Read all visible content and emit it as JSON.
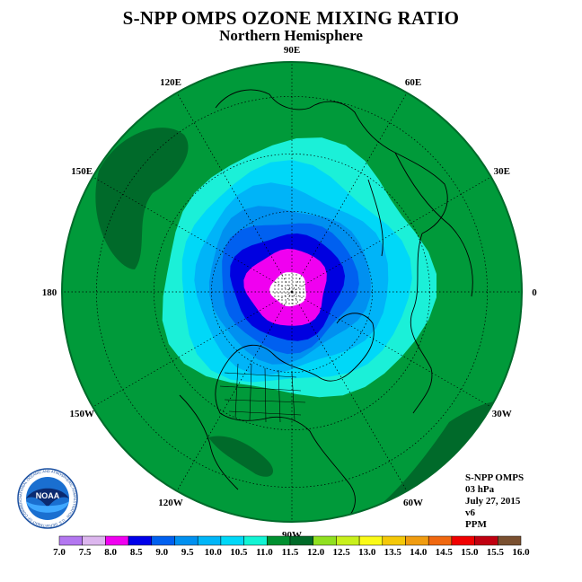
{
  "title": "S-NPP OMPS OZONE MIXING RATIO",
  "subtitle": "Northern Hemisphere",
  "longitude_labels": [
    {
      "label": "90E",
      "lon": 90
    },
    {
      "label": "60E",
      "lon": 60
    },
    {
      "label": "30E",
      "lon": 30
    },
    {
      "label": "0",
      "lon": 0
    },
    {
      "label": "30W",
      "lon": -30
    },
    {
      "label": "60W",
      "lon": -60
    },
    {
      "label": "90W",
      "lon": -90
    },
    {
      "label": "120W",
      "lon": -120
    },
    {
      "label": "150W",
      "lon": -150
    },
    {
      "label": "180",
      "lon": 180
    },
    {
      "label": "150E",
      "lon": 150
    },
    {
      "label": "120E",
      "lon": 120
    }
  ],
  "info": {
    "instrument": "S-NPP OMPS",
    "level": "03 hPa",
    "date": "July 27, 2015",
    "version": "v6",
    "units": "PPM"
  },
  "logo": {
    "text": "NOAA",
    "ring_text": "NATIONAL OCEANIC AND ATMOSPHERIC ADMINISTRATION · U.S. DEPARTMENT OF COMMERCE"
  },
  "colorbar": {
    "ticks": [
      "7.0",
      "7.5",
      "8.0",
      "8.5",
      "9.0",
      "9.5",
      "10.0",
      "10.5",
      "11.0",
      "11.5",
      "12.0",
      "12.5",
      "13.0",
      "13.5",
      "14.0",
      "14.5",
      "15.0",
      "15.5",
      "16.0"
    ],
    "colors": [
      "#b377f0",
      "#dcb6ee",
      "#f000f0",
      "#0000ea",
      "#0060f0",
      "#0090f0",
      "#00b6f8",
      "#00d8f8",
      "#12f4d4",
      "#009030",
      "#006a28",
      "#90e020",
      "#c8f01c",
      "#fafa18",
      "#f4c808",
      "#f09c10",
      "#f06810",
      "#f00000",
      "#c00010",
      "#7a5030"
    ]
  },
  "map_colors": {
    "background_field": "#009a3a",
    "dark_field": "#006a2a",
    "outline": "#006a2a",
    "center_low": "#ffffff"
  },
  "ozone_bands_ppm": [
    {
      "value": 11.0,
      "color": "#1bf0d8"
    },
    {
      "value": 10.5,
      "color": "#00d8f8"
    },
    {
      "value": 10.0,
      "color": "#00b4f8"
    },
    {
      "value": 9.5,
      "color": "#0090f0"
    },
    {
      "value": 9.0,
      "color": "#0060f0"
    },
    {
      "value": 8.5,
      "color": "#0000e0"
    },
    {
      "value": 8.0,
      "color": "#f000f0"
    },
    {
      "value": 7.0,
      "color": "#ffffff"
    }
  ]
}
